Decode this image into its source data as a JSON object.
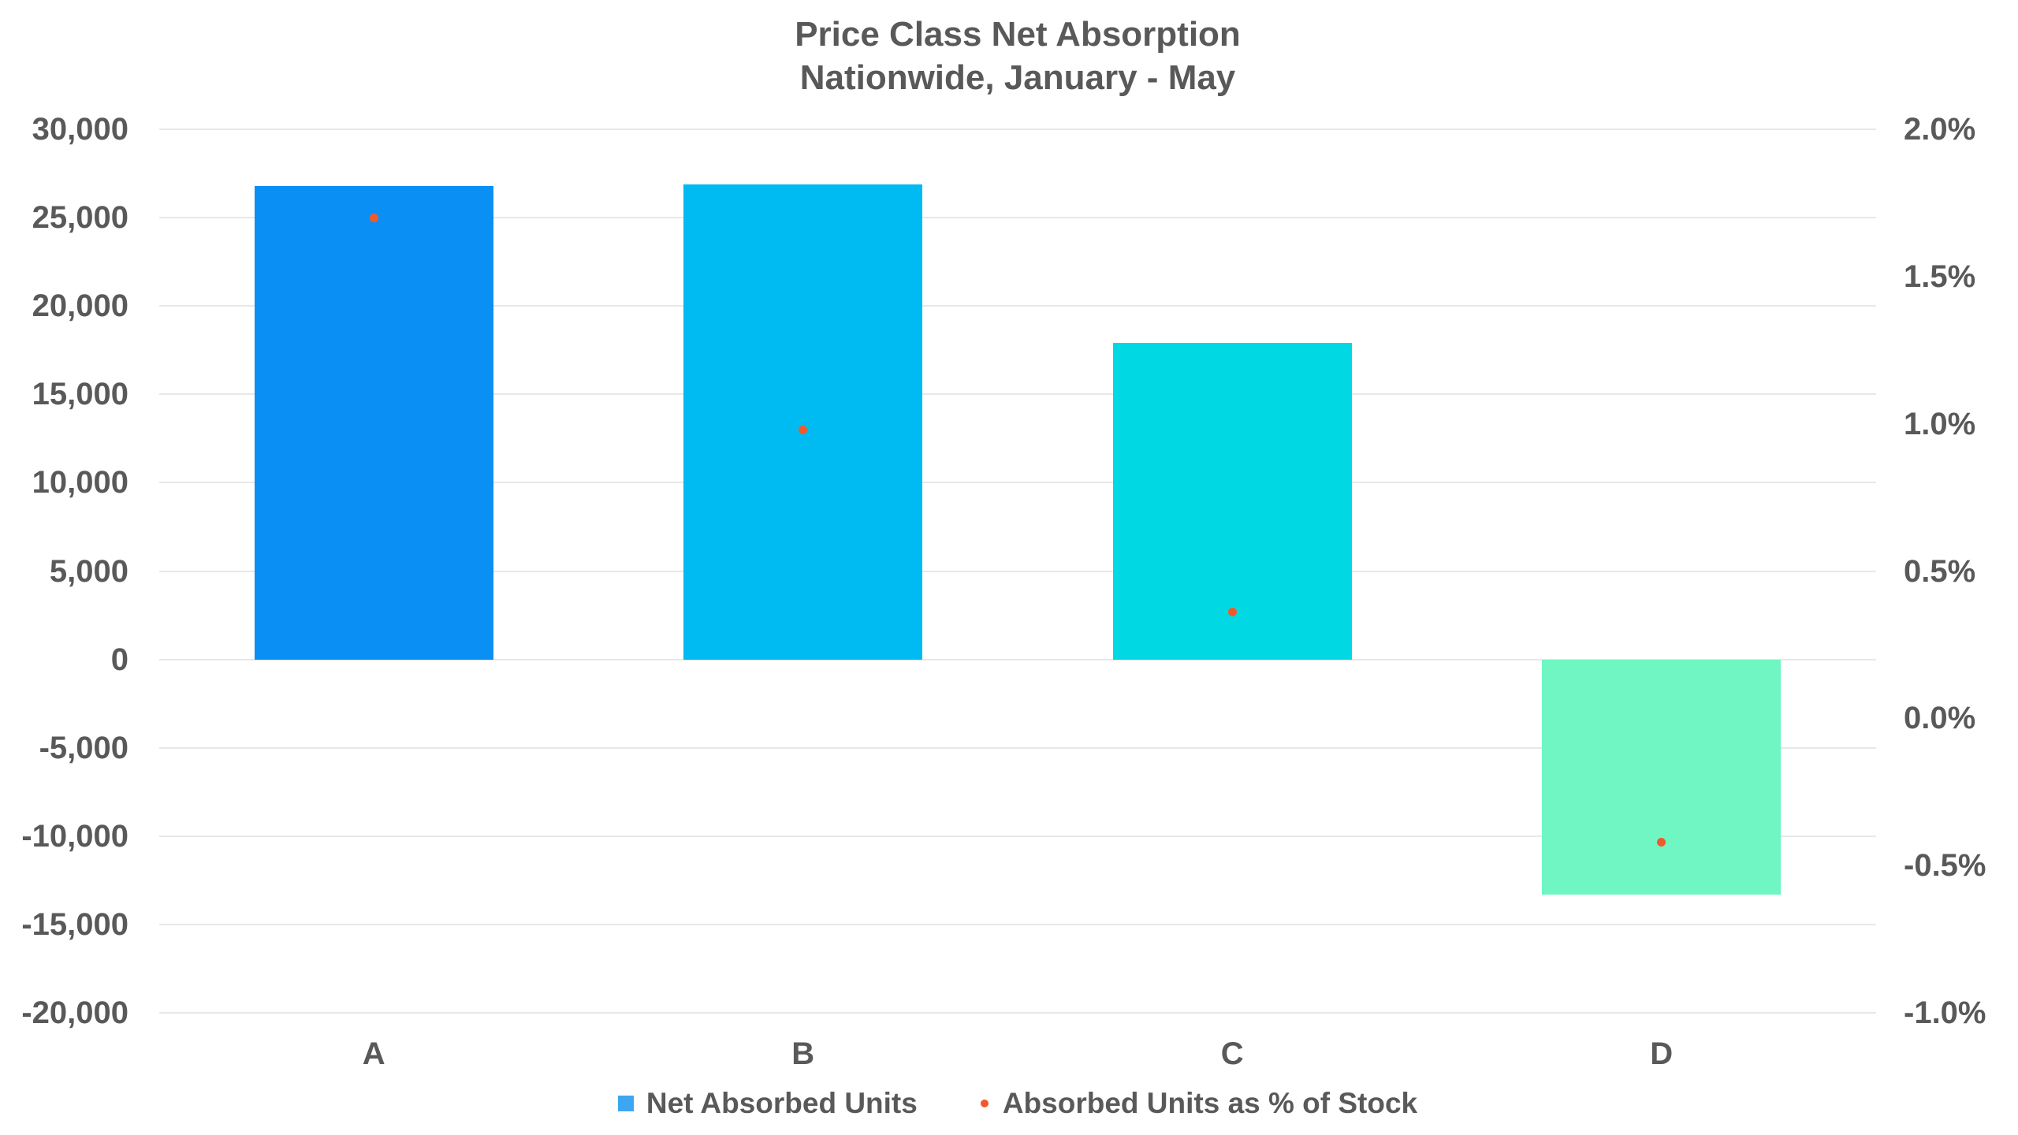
{
  "title": {
    "line1": "Price Class Net Absorption",
    "line2": "Nationwide, January - May"
  },
  "legend": {
    "bar_label": "Net Absorbed Units",
    "dot_label": "Absorbed Units as % of Stock"
  },
  "colors": {
    "text": "#595959",
    "background": "#ffffff",
    "gridline": "#e8e8e8",
    "legend_bar_marker": "#3da6f0",
    "dot_series": "#f05a2b",
    "bar_colors": [
      "#0a8ff5",
      "#00baf2",
      "#00d9e3",
      "#6ff6c2"
    ]
  },
  "chart_data": {
    "type": "bar",
    "subtype": "combo-bar-scatter-dual-axis",
    "title": "Price Class Net Absorption",
    "subtitle": "Nationwide, January - May",
    "categories": [
      "A",
      "B",
      "C",
      "D"
    ],
    "series": [
      {
        "name": "Net Absorbed Units",
        "type": "bar",
        "axis": "left",
        "values": [
          26800,
          26900,
          17900,
          -13300
        ]
      },
      {
        "name": "Absorbed Units as % of Stock",
        "type": "scatter",
        "axis": "right",
        "unit": "%",
        "values": [
          1.7,
          0.98,
          0.36,
          -0.42
        ]
      }
    ],
    "left_axis": {
      "min": -20000,
      "max": 30000,
      "step": 5000,
      "tick_labels": [
        "30,000",
        "25,000",
        "20,000",
        "15,000",
        "10,000",
        "5,000",
        "0",
        "-5,000",
        "-10,000",
        "-15,000",
        "-20,000"
      ]
    },
    "right_axis": {
      "min": -1.0,
      "max": 2.0,
      "step": 0.5,
      "tick_labels": [
        "2.0%",
        "1.5%",
        "1.0%",
        "0.5%",
        "0.0%",
        "-0.5%",
        "-1.0%"
      ]
    },
    "grid": "horizontal",
    "legend_position": "bottom"
  }
}
